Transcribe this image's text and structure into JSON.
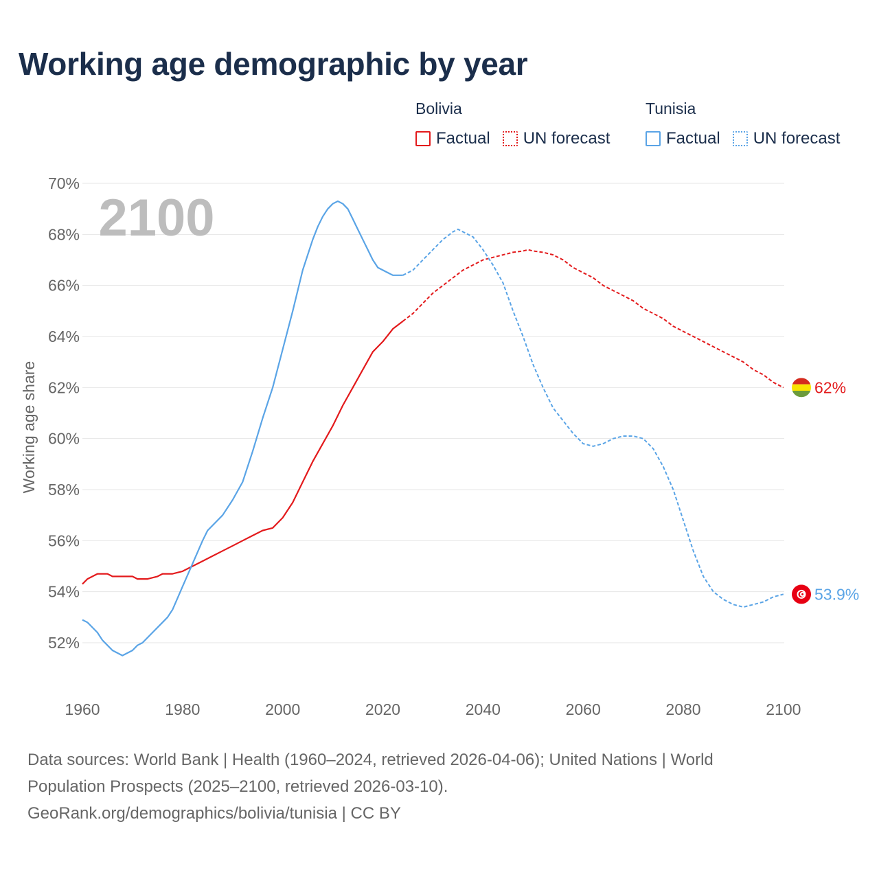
{
  "chart_data": {
    "type": "line",
    "title": "Working age demographic by year",
    "ylabel": "Working age share",
    "xlabel": "",
    "year_label": "2100",
    "xlim": [
      1960,
      2104
    ],
    "ylim": [
      50,
      70
    ],
    "x_ticks": [
      1960,
      1980,
      2000,
      2020,
      2040,
      2060,
      2080,
      2100
    ],
    "y_ticks": [
      52,
      54,
      56,
      58,
      60,
      62,
      64,
      66,
      68,
      70
    ],
    "y_tick_labels": [
      "52%",
      "54%",
      "56%",
      "58%",
      "60%",
      "62%",
      "64%",
      "66%",
      "68%",
      "70%"
    ],
    "grid": true,
    "legend": {
      "groups": [
        {
          "name": "Bolivia",
          "factual_label": "Factual",
          "forecast_label": "UN forecast",
          "color": "#e31a1c"
        },
        {
          "name": "Tunisia",
          "factual_label": "Factual",
          "forecast_label": "UN forecast",
          "color": "#5aa4e6"
        }
      ]
    },
    "series": [
      {
        "name": "Bolivia",
        "color": "#e31a1c",
        "end_label": "62%",
        "flag_icon": "bolivia-flag-icon",
        "factual": {
          "x": [
            1960,
            1961,
            1963,
            1965,
            1966,
            1968,
            1970,
            1971,
            1973,
            1975,
            1976,
            1978,
            1980,
            1982,
            1984,
            1986,
            1988,
            1990,
            1992,
            1994,
            1996,
            1998,
            2000,
            2002,
            2004,
            2006,
            2008,
            2010,
            2012,
            2014,
            2016,
            2018,
            2020,
            2022,
            2024
          ],
          "y": [
            54.3,
            54.5,
            54.7,
            54.7,
            54.6,
            54.6,
            54.6,
            54.5,
            54.5,
            54.6,
            54.7,
            54.7,
            54.8,
            55.0,
            55.2,
            55.4,
            55.6,
            55.8,
            56.0,
            56.2,
            56.4,
            56.5,
            56.9,
            57.5,
            58.3,
            59.1,
            59.8,
            60.5,
            61.3,
            62.0,
            62.7,
            63.4,
            63.8,
            64.3,
            64.6
          ]
        },
        "forecast": {
          "x": [
            2024,
            2026,
            2028,
            2030,
            2032,
            2034,
            2036,
            2038,
            2040,
            2042,
            2044,
            2046,
            2048,
            2049,
            2050,
            2052,
            2054,
            2056,
            2058,
            2060,
            2062,
            2064,
            2066,
            2068,
            2070,
            2072,
            2074,
            2076,
            2078,
            2080,
            2082,
            2084,
            2086,
            2088,
            2090,
            2092,
            2094,
            2096,
            2098,
            2100
          ],
          "y": [
            64.6,
            64.9,
            65.3,
            65.7,
            66.0,
            66.3,
            66.6,
            66.8,
            67.0,
            67.1,
            67.2,
            67.3,
            67.35,
            67.4,
            67.35,
            67.3,
            67.2,
            67.0,
            66.7,
            66.5,
            66.3,
            66.0,
            65.8,
            65.6,
            65.4,
            65.1,
            64.9,
            64.7,
            64.4,
            64.2,
            64.0,
            63.8,
            63.6,
            63.4,
            63.2,
            63.0,
            62.7,
            62.5,
            62.2,
            62.0
          ]
        }
      },
      {
        "name": "Tunisia",
        "color": "#5aa4e6",
        "end_label": "53.9%",
        "flag_icon": "tunisia-flag-icon",
        "factual": {
          "x": [
            1960,
            1961,
            1963,
            1964,
            1966,
            1968,
            1970,
            1971,
            1972,
            1974,
            1976,
            1977,
            1978,
            1980,
            1982,
            1984,
            1985,
            1987,
            1988,
            1990,
            1992,
            1994,
            1996,
            1998,
            2000,
            2002,
            2004,
            2006,
            2007,
            2008,
            2009,
            2010,
            2011,
            2012,
            2013,
            2014,
            2015,
            2016,
            2017,
            2018,
            2019,
            2020,
            2021,
            2022,
            2023,
            2024
          ],
          "y": [
            52.9,
            52.8,
            52.4,
            52.1,
            51.7,
            51.5,
            51.7,
            51.9,
            52.0,
            52.4,
            52.8,
            53.0,
            53.3,
            54.2,
            55.1,
            56.0,
            56.4,
            56.8,
            57.0,
            57.6,
            58.3,
            59.5,
            60.8,
            62.0,
            63.5,
            65.0,
            66.6,
            67.8,
            68.3,
            68.7,
            69.0,
            69.2,
            69.3,
            69.2,
            69.0,
            68.6,
            68.2,
            67.8,
            67.4,
            67.0,
            66.7,
            66.6,
            66.5,
            66.4,
            66.4,
            66.4
          ]
        },
        "forecast": {
          "x": [
            2024,
            2026,
            2028,
            2030,
            2032,
            2034,
            2035,
            2036,
            2038,
            2040,
            2042,
            2044,
            2046,
            2048,
            2050,
            2052,
            2054,
            2056,
            2058,
            2060,
            2062,
            2064,
            2066,
            2068,
            2070,
            2072,
            2074,
            2076,
            2078,
            2080,
            2082,
            2084,
            2086,
            2088,
            2090,
            2092,
            2094,
            2096,
            2098,
            2100
          ],
          "y": [
            66.4,
            66.6,
            67.0,
            67.4,
            67.8,
            68.1,
            68.2,
            68.1,
            67.9,
            67.4,
            66.8,
            66.1,
            65.0,
            64.0,
            62.9,
            62.0,
            61.2,
            60.7,
            60.2,
            59.8,
            59.7,
            59.8,
            60.0,
            60.1,
            60.1,
            60.0,
            59.6,
            58.9,
            58.0,
            56.8,
            55.6,
            54.6,
            54.0,
            53.7,
            53.5,
            53.4,
            53.5,
            53.6,
            53.8,
            53.9
          ]
        }
      }
    ]
  },
  "footer": {
    "line1": "Data sources: World Bank | Health (1960–2024, retrieved 2026-04-06); United Nations | World",
    "line2": "Population Prospects (2025–2100, retrieved 2026-03-10).",
    "line3": "GeoRank.org/demographics/bolivia/tunisia | CC BY"
  }
}
